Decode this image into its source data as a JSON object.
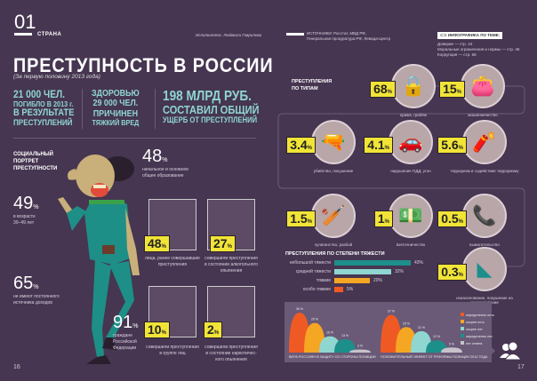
{
  "left_page": {
    "section_number": "01",
    "section_name": "СТРАНА",
    "author": "Исполнитель: Людмила Гаврилова",
    "title": "ПРЕСТУПНОСТЬ В РОССИИ",
    "subtitle": "(За первую половину 2013 года)",
    "stats": [
      {
        "lines": [
          "21 000 ЧЕЛ.",
          "ПОГИБЛО В 2013 г.",
          "В РЕЗУЛЬТАТЕ",
          "ПРЕСТУПЛЕНИЙ"
        ]
      },
      {
        "lines": [
          "ЗДОРОВЬЮ",
          "29 000 ЧЕЛ.",
          "ПРИЧИНЕН",
          "ТЯЖКИЙ ВРЕД"
        ]
      },
      {
        "lines": [
          "198 МЛРД РУБ.",
          "СОСТАВИЛ ОБЩИЙ",
          "УЩЕРБ ОТ ПРЕСТУПЛЕНИЙ"
        ]
      }
    ],
    "portrait_title": [
      "СОЦИАЛЬНЫЙ",
      "ПОРТРЕТ",
      "ПРЕСТУПНОСТИ"
    ],
    "facts": [
      {
        "value": "48",
        "unit": "%",
        "text": [
          "начальное и основное",
          "общее образование"
        ]
      },
      {
        "value": "49",
        "unit": "%",
        "text": [
          "в возрасте",
          "30–49 лет"
        ]
      },
      {
        "value": "65",
        "unit": "%",
        "text": [
          "не имеют постоянного",
          "источника доходов"
        ]
      },
      {
        "value": "91",
        "unit": "%",
        "text": [
          "граждане",
          "Российской",
          "Федерации"
        ]
      }
    ],
    "pictures": [
      {
        "value": "48",
        "unit": "%",
        "text": [
          "лица, ранее совершавшие",
          "преступления"
        ]
      },
      {
        "value": "27",
        "unit": "%",
        "text": [
          "совершили преступления",
          "в состоянии алкогольного",
          "опьянения"
        ]
      },
      {
        "value": "10",
        "unit": "%",
        "text": [
          "совершили преступления",
          "в группе лиц"
        ]
      },
      {
        "value": "2",
        "unit": "%",
        "text": [
          "совершили преступления",
          "в состоянии наркотичес-",
          "кого опьянения"
        ]
      }
    ],
    "page_number": "16"
  },
  "right_page": {
    "sources": [
      "ИСТОЧНИКИ: Росстат, МВД РФ,",
      "Генеральная прокуратура РФ, Левада-Центр"
    ],
    "related": {
      "title": "ИНФОГРАФИКА ПО ТЕМЕ:",
      "items": [
        "Доверие — стр. 44",
        "Моральные ограничения и нормы — стр. 46",
        "Коррупция — стр. 66"
      ]
    },
    "types_title": [
      "ПРЕСТУПЛЕНИЯ",
      "ПО ТИПАМ"
    ],
    "types": [
      {
        "value": "68",
        "label": "кража, грабёж",
        "icon": "padlock-icon"
      },
      {
        "value": "15",
        "label": "мошенничество",
        "icon": "purse-icon"
      },
      {
        "value": "3.4",
        "label": "убийство, покушение",
        "icon": "revolver-icon"
      },
      {
        "value": "4.1",
        "label": "нарушение ПДД, угон",
        "icon": "car-icon"
      },
      {
        "value": "5.6",
        "label": "терроризм и содействие терроризму",
        "icon": "dynamite-icon"
      },
      {
        "value": "1.5",
        "label": "хулиганство, разбой",
        "icon": "club-icon"
      },
      {
        "value": "1",
        "label": "взяточничество",
        "icon": "bribe-icon"
      },
      {
        "value": "0.5",
        "label": "вымогательство",
        "icon": "masked-caller-icon"
      },
      {
        "value": "0.3",
        "label": "изнасилование, покушение на изнасилование",
        "icon": "underwear-icon"
      }
    ],
    "unit": "%",
    "page_number": "17"
  },
  "colors": {
    "bg": "#463651",
    "yellow": "#f1e437",
    "teal": "#1d8f8a",
    "mint": "#8fd6d1",
    "orange_red": "#ef5a24",
    "orange": "#f5a623",
    "grey": "#c9c2cc"
  },
  "chart_data": [
    {
      "type": "bar",
      "title": "ПРЕСТУПЛЕНИЯ ПО СТЕПЕНИ ТЯЖЕСТИ",
      "categories": [
        "небольшой тяжести",
        "средней тяжести",
        "тяжкие",
        "особо тяжкие"
      ],
      "values": [
        43,
        32,
        20,
        5
      ],
      "labels": [
        "43%",
        "32%",
        "20%",
        "5%"
      ],
      "colors": [
        "#1d8f8a",
        "#8fd6d1",
        "#f5a623",
        "#ef5a24"
      ]
    },
    {
      "type": "area",
      "title": "ВЕРА РОССИЯН В ЗАЩИТУ СО СТОРОНЫ ПОЛИЦИИ",
      "categories": [
        "определенно есть",
        "скорее есть",
        "скорее нет",
        "определенно нет",
        "нет ответа"
      ],
      "values": [
        39,
        29,
        16,
        13,
        3
      ],
      "labels": [
        "39 %",
        "29 %",
        "16 %",
        "13 %",
        "3 %"
      ]
    },
    {
      "type": "area",
      "title": "ПОЛОЖИТЕЛЬНЫЙ ЭФФЕКТ ОТ РЕФОРМЫ ПОЛИЦИИ 2012 ГОДА",
      "categories": [
        "определенно есть",
        "скорее есть",
        "скорее нет",
        "определенно нет",
        "нет ответа"
      ],
      "values": [
        37,
        25,
        21,
        12,
        5
      ],
      "labels": [
        "37 %",
        "25 %",
        "21 %",
        "12 %",
        "5 %"
      ]
    }
  ],
  "legend": [
    "определенно есть",
    "скорее есть",
    "скорее нет",
    "определенно нет",
    "нет ответа"
  ]
}
